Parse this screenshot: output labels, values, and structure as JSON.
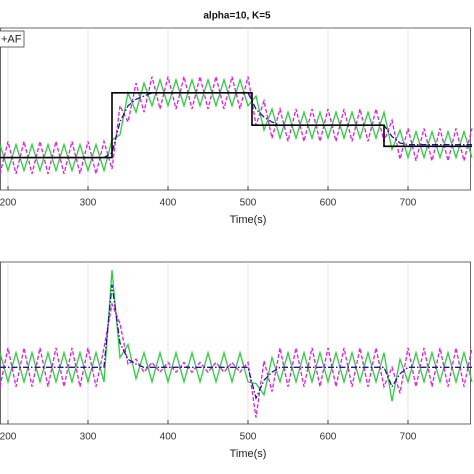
{
  "chart_data": [
    {
      "type": "line",
      "title": "alpha=10, K=5",
      "xlabel": "Time(s)",
      "legend_label": "+AF",
      "xlim": [
        190,
        780
      ],
      "ylim": [
        0,
        10
      ],
      "xticks": [
        200,
        300,
        400,
        500,
        600,
        700
      ],
      "grid": true,
      "series": [
        {
          "color": "#2ecc40",
          "linestyle": "solid",
          "x": [
            190,
            200,
            210,
            220,
            230,
            240,
            250,
            260,
            270,
            280,
            290,
            300,
            310,
            320,
            330,
            340,
            350,
            360,
            370,
            380,
            390,
            400,
            410,
            420,
            430,
            440,
            450,
            460,
            470,
            480,
            490,
            500,
            510,
            520,
            530,
            540,
            550,
            560,
            570,
            580,
            590,
            600,
            610,
            620,
            630,
            640,
            650,
            660,
            670,
            680,
            690,
            700,
            710,
            720,
            730,
            740,
            750,
            760,
            770,
            780
          ],
          "values": [
            2.8,
            1.2,
            2.8,
            1.2,
            2.8,
            1.2,
            2.8,
            1.2,
            2.8,
            1.2,
            2.8,
            1.2,
            2.8,
            1.2,
            3.1,
            3.4,
            6.0,
            4.8,
            6.6,
            5.2,
            6.8,
            5.2,
            6.8,
            5.2,
            6.8,
            5.2,
            6.8,
            5.2,
            6.8,
            5.2,
            6.8,
            5.2,
            5.8,
            3.7,
            5.0,
            3.2,
            4.8,
            3.2,
            4.8,
            3.2,
            4.8,
            3.2,
            4.8,
            3.2,
            4.8,
            3.2,
            4.8,
            3.2,
            4.8,
            2.5,
            3.7,
            2.0,
            3.6,
            2.0,
            3.6,
            2.0,
            3.6,
            2.0,
            3.6,
            2.0
          ]
        },
        {
          "color": "#e01ee0",
          "linestyle": "dashed",
          "x": [
            190,
            200,
            210,
            220,
            230,
            240,
            250,
            260,
            270,
            280,
            290,
            300,
            310,
            320,
            330,
            340,
            350,
            360,
            370,
            380,
            390,
            400,
            410,
            420,
            430,
            440,
            450,
            460,
            470,
            480,
            490,
            500,
            510,
            520,
            530,
            540,
            550,
            560,
            570,
            580,
            590,
            600,
            610,
            620,
            630,
            640,
            650,
            660,
            670,
            680,
            690,
            700,
            710,
            720,
            730,
            740,
            750,
            760,
            770,
            780
          ],
          "values": [
            1,
            3,
            1,
            3,
            1,
            3,
            1,
            3,
            1,
            3,
            1,
            3,
            1,
            3,
            1.3,
            5.2,
            4.2,
            6.6,
            4.8,
            7,
            5,
            7,
            5,
            7,
            5,
            7,
            5,
            7,
            5,
            7,
            5,
            7,
            4.0,
            5.5,
            3.2,
            5,
            3,
            5,
            3,
            5,
            3,
            5,
            3,
            5,
            3,
            5,
            3,
            5,
            3,
            4.3,
            1.9,
            3.8,
            1.8,
            3.8,
            1.8,
            3.8,
            1.8,
            3.8,
            1.8,
            3.8
          ]
        },
        {
          "color": "#1a1a8c",
          "linestyle": "dashdot",
          "x": [
            190,
            200,
            210,
            220,
            230,
            240,
            250,
            260,
            270,
            280,
            290,
            300,
            310,
            320,
            330,
            340,
            350,
            360,
            370,
            380,
            390,
            400,
            410,
            420,
            430,
            440,
            450,
            460,
            470,
            480,
            490,
            500,
            510,
            520,
            530,
            540,
            550,
            560,
            570,
            580,
            590,
            600,
            610,
            620,
            630,
            640,
            650,
            660,
            670,
            680,
            690,
            700,
            710,
            720,
            730,
            740,
            750,
            760,
            770,
            780
          ],
          "values": [
            2,
            2,
            2,
            2,
            2,
            2,
            2,
            2,
            2,
            2,
            2,
            2,
            2,
            2,
            2.3,
            4.2,
            5.2,
            5.6,
            5.8,
            6,
            6,
            6,
            6,
            6,
            6,
            6,
            6,
            6,
            6,
            6,
            6,
            6,
            5,
            4.5,
            4.2,
            4,
            4,
            4,
            4,
            4,
            4,
            4,
            4,
            4,
            4,
            4,
            4,
            4,
            4,
            3.3,
            2.9,
            2.8,
            2.8,
            2.8,
            2.8,
            2.8,
            2.8,
            2.8,
            2.8,
            2.8
          ]
        },
        {
          "color": "#000000",
          "linestyle": "solid",
          "x": [
            190,
            330,
            330,
            505,
            505,
            670,
            670,
            780
          ],
          "values": [
            2,
            2,
            6,
            6,
            4,
            4,
            2.7,
            2.7
          ]
        }
      ]
    },
    {
      "type": "line",
      "xlabel": "Time(s)",
      "xlim": [
        190,
        780
      ],
      "ylim": [
        -3.5,
        6.5
      ],
      "xticks": [
        200,
        300,
        400,
        500,
        600,
        700
      ],
      "grid": true,
      "series": [
        {
          "color": "#2ecc40",
          "linestyle": "solid",
          "x": [
            190,
            200,
            210,
            220,
            230,
            240,
            250,
            260,
            270,
            280,
            290,
            300,
            310,
            320,
            330,
            340,
            350,
            360,
            370,
            380,
            390,
            400,
            410,
            420,
            430,
            440,
            450,
            460,
            470,
            480,
            490,
            500,
            510,
            520,
            530,
            540,
            550,
            560,
            570,
            580,
            590,
            600,
            610,
            620,
            630,
            640,
            650,
            660,
            670,
            680,
            690,
            700,
            710,
            720,
            730,
            740,
            750,
            760,
            770,
            780
          ],
          "values": [
            0.9,
            -0.9,
            0.9,
            -0.9,
            0.9,
            -0.9,
            0.9,
            -0.9,
            0.9,
            -0.9,
            0.9,
            -0.9,
            0.9,
            -0.9,
            6.0,
            0.6,
            1.4,
            -0.7,
            0.9,
            -0.9,
            0.9,
            -0.9,
            0.9,
            -0.9,
            0.9,
            -0.9,
            0.9,
            -0.9,
            0.9,
            -0.9,
            0.9,
            -0.9,
            -1.0,
            -1.7,
            0.6,
            -0.9,
            0.9,
            -0.9,
            0.9,
            -0.9,
            0.9,
            -0.9,
            0.9,
            -0.9,
            0.9,
            -0.9,
            0.9,
            -0.9,
            0.9,
            -2.1,
            0.5,
            -0.9,
            0.9,
            -0.9,
            0.9,
            -0.9,
            0.9,
            -0.9,
            0.9,
            -0.9
          ]
        },
        {
          "color": "#e01ee0",
          "linestyle": "dashed",
          "x": [
            190,
            200,
            210,
            220,
            230,
            240,
            250,
            260,
            270,
            280,
            290,
            300,
            310,
            320,
            330,
            340,
            350,
            360,
            370,
            380,
            390,
            400,
            410,
            420,
            430,
            440,
            450,
            460,
            470,
            480,
            490,
            500,
            510,
            520,
            530,
            540,
            550,
            560,
            570,
            580,
            590,
            600,
            610,
            620,
            630,
            640,
            650,
            660,
            670,
            680,
            690,
            700,
            710,
            720,
            730,
            740,
            750,
            760,
            770,
            780
          ],
          "values": [
            -1.2,
            1.2,
            -1.2,
            1.2,
            -1.2,
            1.2,
            -1.2,
            1.2,
            -1.2,
            1.2,
            -1.2,
            1.2,
            -1.2,
            1.2,
            3.9,
            2.7,
            0.2,
            0.5,
            -0.3,
            0.3,
            -0.3,
            0.3,
            -0.3,
            0.3,
            -0.3,
            0.3,
            -0.3,
            0.3,
            -0.3,
            0.3,
            -0.3,
            0.3,
            -3.1,
            0.4,
            -1.5,
            1.2,
            -1.2,
            1.2,
            -1.2,
            1.2,
            -1.2,
            1.2,
            -1.2,
            1.2,
            -1.2,
            1.2,
            -1.2,
            1.2,
            -1.2,
            0.0,
            -1.6,
            1.2,
            -1.2,
            1.2,
            -1.2,
            1.2,
            -1.2,
            1.2,
            -1.2,
            1.2
          ]
        },
        {
          "color": "#1a1a8c",
          "linestyle": "dashdot",
          "x": [
            190,
            200,
            210,
            220,
            230,
            240,
            250,
            260,
            270,
            280,
            290,
            300,
            310,
            320,
            330,
            340,
            350,
            360,
            370,
            380,
            390,
            400,
            410,
            420,
            430,
            440,
            450,
            460,
            470,
            480,
            490,
            500,
            510,
            520,
            530,
            540,
            550,
            560,
            570,
            580,
            590,
            600,
            610,
            620,
            630,
            640,
            650,
            660,
            670,
            680,
            690,
            700,
            710,
            720,
            730,
            740,
            750,
            760,
            770,
            780
          ],
          "values": [
            0,
            0,
            0,
            0,
            0,
            0,
            0,
            0,
            0,
            0,
            0,
            0,
            0,
            0,
            5.1,
            1.5,
            0.5,
            0.2,
            0,
            0,
            0,
            0,
            0,
            0,
            0,
            0,
            0,
            0,
            0,
            0,
            0,
            0,
            -1.9,
            -0.8,
            -0.3,
            0,
            0,
            0,
            0,
            0,
            0,
            0,
            0,
            0,
            0,
            0,
            0,
            0,
            0,
            -1.2,
            -0.4,
            0,
            0,
            0,
            0,
            0,
            0,
            0,
            0,
            0
          ]
        }
      ]
    }
  ]
}
